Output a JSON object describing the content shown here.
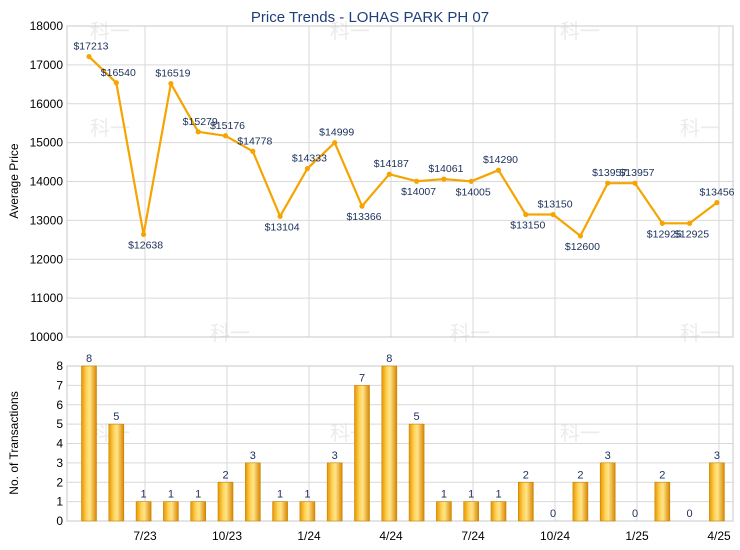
{
  "chart_data": [
    {
      "type": "line",
      "title": "Price Trends - LOHAS PARK PH 07",
      "ylabel": "Average Price",
      "ylim": [
        10000,
        18000
      ],
      "yticks": [
        "10000",
        "11000",
        "12000",
        "13000",
        "14000",
        "15000",
        "16000",
        "17000",
        "18000"
      ],
      "grid": true,
      "series": [
        {
          "color": "#f5a400",
          "values": [
            17213,
            16540,
            12638,
            16519,
            15279,
            15176,
            14778,
            13104,
            14333,
            14999,
            13366,
            14187,
            14007,
            14061,
            14005,
            14290,
            13150,
            13150,
            12600,
            13957,
            13957,
            12925,
            12925,
            13456
          ],
          "labels": [
            "$17213",
            "$16540",
            "$12638",
            "$16519",
            "$15279",
            "$15176",
            "$14778",
            "$13104",
            "$14333",
            "$14999",
            "$13366",
            "$14187",
            "$14007",
            "$14061",
            "$14005",
            "$14290",
            "$13150",
            "$13150",
            "$12600",
            "$13957",
            "$13957",
            "$12925",
            "$12925",
            "$13456"
          ]
        }
      ]
    },
    {
      "type": "bar",
      "ylabel": "No. of Transactions",
      "ylim": [
        0,
        8
      ],
      "yticks": [
        "0",
        "1",
        "2",
        "3",
        "4",
        "5",
        "6",
        "7",
        "8"
      ],
      "xtick_labels": [
        "7/23",
        "10/23",
        "1/24",
        "4/24",
        "7/24",
        "10/24",
        "1/25",
        "4/25"
      ],
      "grid": true,
      "bar_color": "#f0a400",
      "values": [
        8,
        5,
        1,
        1,
        1,
        2,
        3,
        1,
        1,
        3,
        7,
        8,
        5,
        1,
        1,
        1,
        2,
        0,
        2,
        3,
        0,
        2,
        0,
        3
      ]
    }
  ],
  "watermark": "科一"
}
